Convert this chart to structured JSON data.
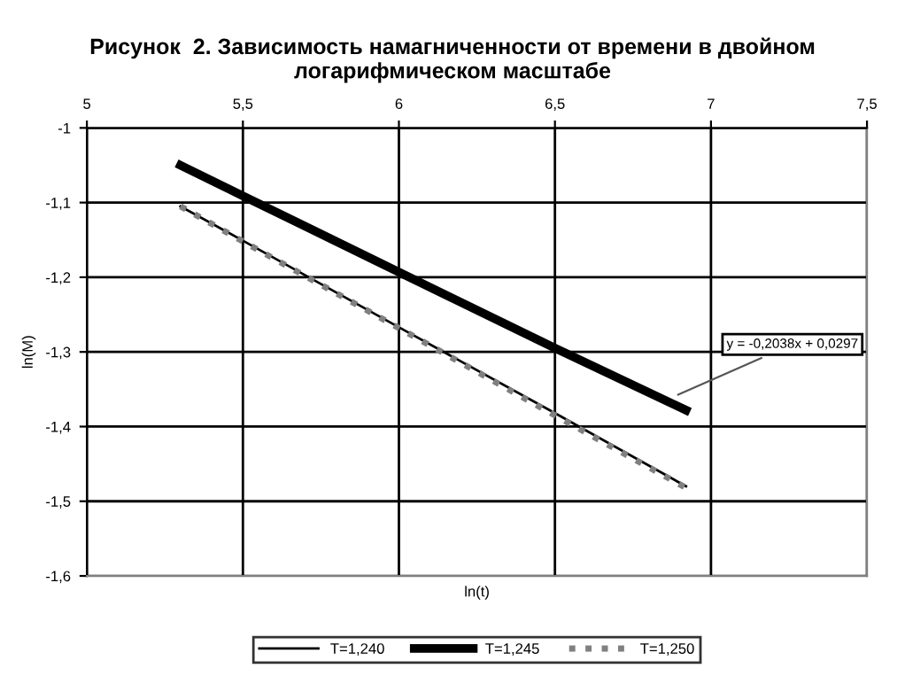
{
  "chart_data": {
    "type": "line",
    "title": "Рисунок  2. Зависимость намагниченности от времени в двойном логарифмическом масштабе",
    "xlabel": "ln(t)",
    "ylabel": "ln(M)",
    "x": [
      5.3,
      5.5,
      6.0,
      6.5,
      6.92
    ],
    "series": [
      {
        "name": "T=1,240",
        "color": "#000000",
        "line_style": "solid",
        "values": [
          -1.105,
          -1.151,
          -1.267,
          -1.382,
          -1.48
        ]
      },
      {
        "name": "T=1,245",
        "color": "#000000",
        "line_style": "solid",
        "values": [
          -1.05,
          -1.091,
          -1.193,
          -1.295,
          -1.378
        ]
      },
      {
        "name": "T=1,250",
        "color": "#808080",
        "line_style": "dotted",
        "values": [
          -1.105,
          -1.152,
          -1.268,
          -1.385,
          -1.482
        ]
      }
    ],
    "xlim": [
      5,
      7.5
    ],
    "xticks": [
      {
        "value": 5,
        "label": "5"
      },
      {
        "value": 5.5,
        "label": "5,5"
      },
      {
        "value": 6,
        "label": "6"
      },
      {
        "value": 6.5,
        "label": "6,5"
      },
      {
        "value": 7,
        "label": "7"
      },
      {
        "value": 7.5,
        "label": "7,5"
      }
    ],
    "ylim": [
      -1.6,
      -1
    ],
    "yticks": [
      {
        "value": -1.6,
        "label": "-1,6"
      },
      {
        "value": -1.5,
        "label": "-1,5"
      },
      {
        "value": -1.4,
        "label": "-1,4"
      },
      {
        "value": -1.3,
        "label": "-1,3"
      },
      {
        "value": -1.2,
        "label": "-1,2"
      },
      {
        "value": -1.1,
        "label": "-1,1"
      },
      {
        "value": -1,
        "label": "-1"
      }
    ],
    "annotations": [
      {
        "text": "y = -0,2038x + 0,0297",
        "x": 6.88,
        "y": -1.36
      }
    ],
    "grid": true,
    "legend": "bottom",
    "marker": "none"
  }
}
